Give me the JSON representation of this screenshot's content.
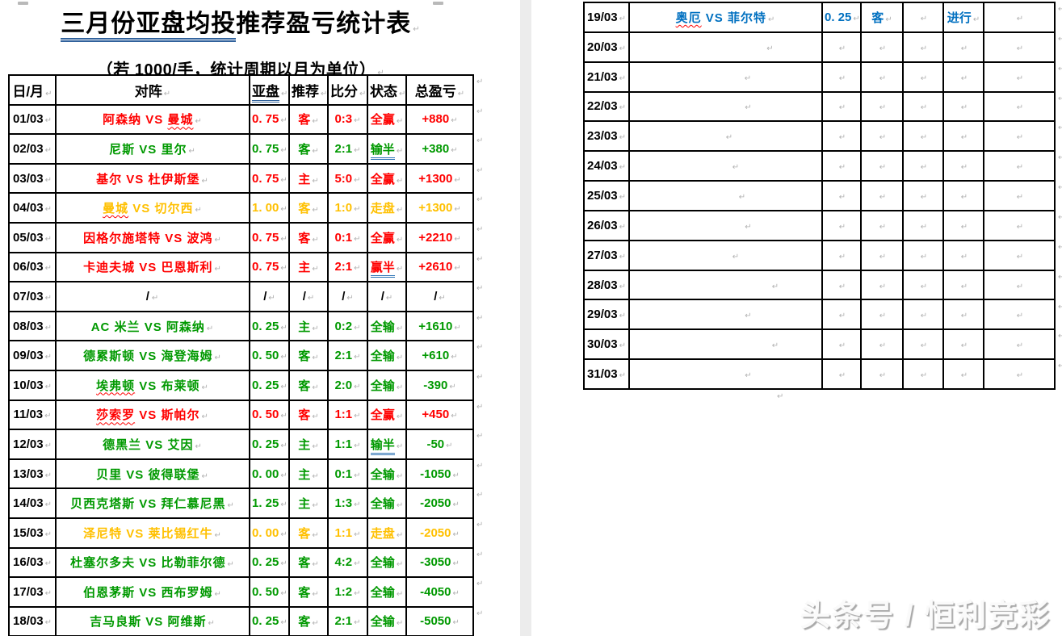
{
  "page": {
    "title_underlined": "三月份亚盘均投",
    "title_rest": "推荐盈亏统计表",
    "subtitle": "（若 1000/手，统计周期以月为单位）",
    "watermark": "头条号 / 恒利竞彩",
    "paragraph_mark": "↵"
  },
  "table": {
    "columns": [
      "日/月",
      "对阵",
      "亚盘",
      "推荐",
      "比分",
      "状态",
      "总盈亏"
    ],
    "underlined_column_index": 2,
    "vs_separator": "VS"
  },
  "colors": {
    "win_red": "#ff0000",
    "lose_green": "#009900",
    "push_yellow": "#ffc000",
    "ongoing_blue": "#0070c0",
    "text_black": "#000000"
  },
  "left_rows": [
    {
      "date": "01/03",
      "team1": "阿森纳",
      "team2": "曼城",
      "wavy": 2,
      "handicap": "0. 75",
      "pick": "客",
      "score": "0:3",
      "status": "全赢",
      "status_underline": false,
      "total": "+880",
      "color": "red"
    },
    {
      "date": "02/03",
      "team1": "尼斯",
      "team2": "里尔",
      "wavy": 0,
      "handicap": "0. 75",
      "pick": "客",
      "score": "2:1",
      "status": "输半",
      "status_underline": true,
      "total": "+380",
      "color": "green"
    },
    {
      "date": "03/03",
      "team1": "基尔",
      "team2": "杜伊斯堡",
      "wavy": 0,
      "handicap": "0. 75",
      "pick": "主",
      "score": "5:0",
      "status": "全赢",
      "status_underline": false,
      "total": "+1300",
      "color": "red"
    },
    {
      "date": "04/03",
      "team1": "曼城",
      "team2": "切尔西",
      "wavy": 1,
      "handicap": "1. 00",
      "pick": "客",
      "score": "1:0",
      "status": "走盘",
      "status_underline": false,
      "total": "+1300",
      "color": "yellow"
    },
    {
      "date": "05/03",
      "team1": "因格尔施塔特",
      "team2": "波鸿",
      "wavy": 0,
      "handicap": "0. 75",
      "pick": "客",
      "score": "0:1",
      "status": "全赢",
      "status_underline": false,
      "total": "+2210",
      "color": "red"
    },
    {
      "date": "06/03",
      "team1": "卡迪夫城",
      "team2": "巴恩斯利",
      "wavy": 0,
      "handicap": "0. 75",
      "pick": "主",
      "score": "2:1",
      "status": "赢半",
      "status_underline": true,
      "total": "+2610",
      "color": "red"
    },
    {
      "date": "07/03",
      "team1": "/",
      "team2": "",
      "wavy": 0,
      "handicap": "/",
      "pick": "/",
      "score": "/",
      "status": "/",
      "status_underline": false,
      "total": "/",
      "color": "black"
    },
    {
      "date": "08/03",
      "team1": "AC 米兰",
      "team2": "阿森纳",
      "wavy": 0,
      "handicap": "0. 25",
      "pick": "主",
      "score": "0:2",
      "status": "全输",
      "status_underline": false,
      "total": "+1610",
      "color": "green"
    },
    {
      "date": "09/03",
      "team1": "德累斯顿",
      "team2": "海登海姆",
      "wavy": 0,
      "handicap": "0. 50",
      "pick": "客",
      "score": "2:1",
      "status": "全输",
      "status_underline": false,
      "total": "+610",
      "color": "green"
    },
    {
      "date": "10/03",
      "team1": "埃弗顿",
      "team2": "布莱顿",
      "wavy": 1,
      "handicap": "0. 25",
      "pick": "客",
      "score": "2:0",
      "status": "全输",
      "status_underline": false,
      "total": "-390",
      "color": "green"
    },
    {
      "date": "11/03",
      "team1": "莎索罗",
      "team2": "斯帕尔",
      "wavy": 1,
      "handicap": "0. 50",
      "pick": "客",
      "score": "1:1",
      "status": "全赢",
      "status_underline": false,
      "total": "+450",
      "color": "red"
    },
    {
      "date": "12/03",
      "team1": "德黑兰",
      "team2": "艾因",
      "wavy": 0,
      "handicap": "0. 25",
      "pick": "主",
      "score": "1:1",
      "status": "输半",
      "status_underline": true,
      "total": "-50",
      "color": "green"
    },
    {
      "date": "13/03",
      "team1": "贝里",
      "team2": "彼得联堡",
      "wavy": 0,
      "handicap": "0. 00",
      "pick": "主",
      "score": "0:1",
      "status": "全输",
      "status_underline": false,
      "total": "-1050",
      "color": "green"
    },
    {
      "date": "14/03",
      "team1": "贝西克塔斯",
      "team2": "拜仁慕尼黑",
      "wavy": 0,
      "handicap": "1. 25",
      "pick": "主",
      "score": "1:3",
      "status": "全输",
      "status_underline": false,
      "total": "-2050",
      "color": "green"
    },
    {
      "date": "15/03",
      "team1": "泽尼特",
      "team2": "莱比锡红牛",
      "wavy": 0,
      "handicap": "0. 00",
      "pick": "客",
      "score": "1:1",
      "status": "走盘",
      "status_underline": false,
      "total": "-2050",
      "color": "yellow"
    },
    {
      "date": "16/03",
      "team1": "杜塞尔多夫",
      "team2": "比勒菲尔德",
      "wavy": 0,
      "handicap": "0. 25",
      "pick": "客",
      "score": "4:2",
      "status": "全输",
      "status_underline": false,
      "total": "-3050",
      "color": "green"
    },
    {
      "date": "17/03",
      "team1": "伯恩茅斯",
      "team2": "西布罗姆",
      "wavy": 0,
      "handicap": "0. 50",
      "pick": "客",
      "score": "1:2",
      "status": "全输",
      "status_underline": false,
      "total": "-4050",
      "color": "green"
    },
    {
      "date": "18/03",
      "team1": "吉马良斯",
      "team2": "阿维斯",
      "wavy": 0,
      "handicap": "0. 25",
      "pick": "客",
      "score": "2:1",
      "status": "全输",
      "status_underline": false,
      "total": "-5050",
      "color": "green"
    }
  ],
  "right_rows": [
    {
      "date": "19/03",
      "team1": "奥厄",
      "team2": "菲尔特",
      "wavy": 1,
      "handicap": "0. 25",
      "pick": "客",
      "score": "",
      "status": "进行",
      "status_underline": false,
      "total": "",
      "color": "blue"
    },
    {
      "date": "20/03",
      "team1": "",
      "team2": "",
      "wavy": 0,
      "handicap": "",
      "pick": "",
      "score": "",
      "status": "",
      "status_underline": false,
      "total": "",
      "color": "black"
    },
    {
      "date": "21/03",
      "team1": "",
      "team2": "",
      "wavy": 0,
      "handicap": "",
      "pick": "",
      "score": "",
      "status": "",
      "status_underline": false,
      "total": "",
      "color": "black"
    },
    {
      "date": "22/03",
      "team1": "",
      "team2": "",
      "wavy": 0,
      "handicap": "",
      "pick": "",
      "score": "",
      "status": "",
      "status_underline": false,
      "total": "",
      "color": "black"
    },
    {
      "date": "23/03",
      "team1": "",
      "team2": "",
      "wavy": 0,
      "handicap": "",
      "pick": "",
      "score": "",
      "status": "",
      "status_underline": false,
      "total": "",
      "color": "black"
    },
    {
      "date": "24/03",
      "team1": "",
      "team2": "",
      "wavy": 0,
      "handicap": "",
      "pick": "",
      "score": "",
      "status": "",
      "status_underline": false,
      "total": "",
      "color": "black"
    },
    {
      "date": "25/03",
      "team1": "",
      "team2": "",
      "wavy": 0,
      "handicap": "",
      "pick": "",
      "score": "",
      "status": "",
      "status_underline": false,
      "total": "",
      "color": "black"
    },
    {
      "date": "26/03",
      "team1": "",
      "team2": "",
      "wavy": 0,
      "handicap": "",
      "pick": "",
      "score": "",
      "status": "",
      "status_underline": false,
      "total": "",
      "color": "black"
    },
    {
      "date": "27/03",
      "team1": "",
      "team2": "",
      "wavy": 0,
      "handicap": "",
      "pick": "",
      "score": "",
      "status": "",
      "status_underline": false,
      "total": "",
      "color": "black"
    },
    {
      "date": "28/03",
      "team1": "",
      "team2": "",
      "wavy": 0,
      "handicap": "",
      "pick": "",
      "score": "",
      "status": "",
      "status_underline": false,
      "total": "",
      "color": "black"
    },
    {
      "date": "29/03",
      "team1": "",
      "team2": "",
      "wavy": 0,
      "handicap": "",
      "pick": "",
      "score": "",
      "status": "",
      "status_underline": false,
      "total": "",
      "color": "black"
    },
    {
      "date": "30/03",
      "team1": "",
      "team2": "",
      "wavy": 0,
      "handicap": "",
      "pick": "",
      "score": "",
      "status": "",
      "status_underline": false,
      "total": "",
      "color": "black"
    },
    {
      "date": "31/03",
      "team1": "",
      "team2": "",
      "wavy": 0,
      "handicap": "",
      "pick": "",
      "score": "",
      "status": "",
      "status_underline": false,
      "total": "",
      "color": "black"
    }
  ]
}
